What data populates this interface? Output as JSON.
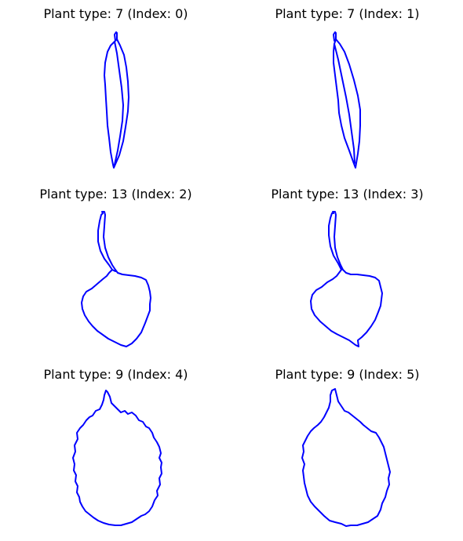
{
  "chart_data": [
    {
      "type": "line",
      "title": "Plant type: 7 (Index: 0)",
      "series": [
        {
          "shape": "lanceolate",
          "color": "#0000ff"
        }
      ],
      "axes": "off"
    },
    {
      "type": "line",
      "title": "Plant type: 7 (Index: 1)",
      "series": [
        {
          "shape": "lanceolate-curved",
          "color": "#0000ff"
        }
      ],
      "axes": "off"
    },
    {
      "type": "line",
      "title": "Plant type: 13 (Index: 2)",
      "series": [
        {
          "shape": "petiolate-rounded",
          "color": "#0000ff"
        }
      ],
      "axes": "off"
    },
    {
      "type": "line",
      "title": "Plant type: 13 (Index: 3)",
      "series": [
        {
          "shape": "petiolate-pointed",
          "color": "#0000ff"
        }
      ],
      "axes": "off"
    },
    {
      "type": "line",
      "title": "Plant type: 9 (Index: 4)",
      "series": [
        {
          "shape": "ovate-serrated",
          "color": "#0000ff"
        }
      ],
      "axes": "off"
    },
    {
      "type": "line",
      "title": "Plant type: 9 (Index: 5)",
      "series": [
        {
          "shape": "ovate-serrated-narrow",
          "color": "#0000ff"
        }
      ],
      "axes": "off"
    }
  ]
}
